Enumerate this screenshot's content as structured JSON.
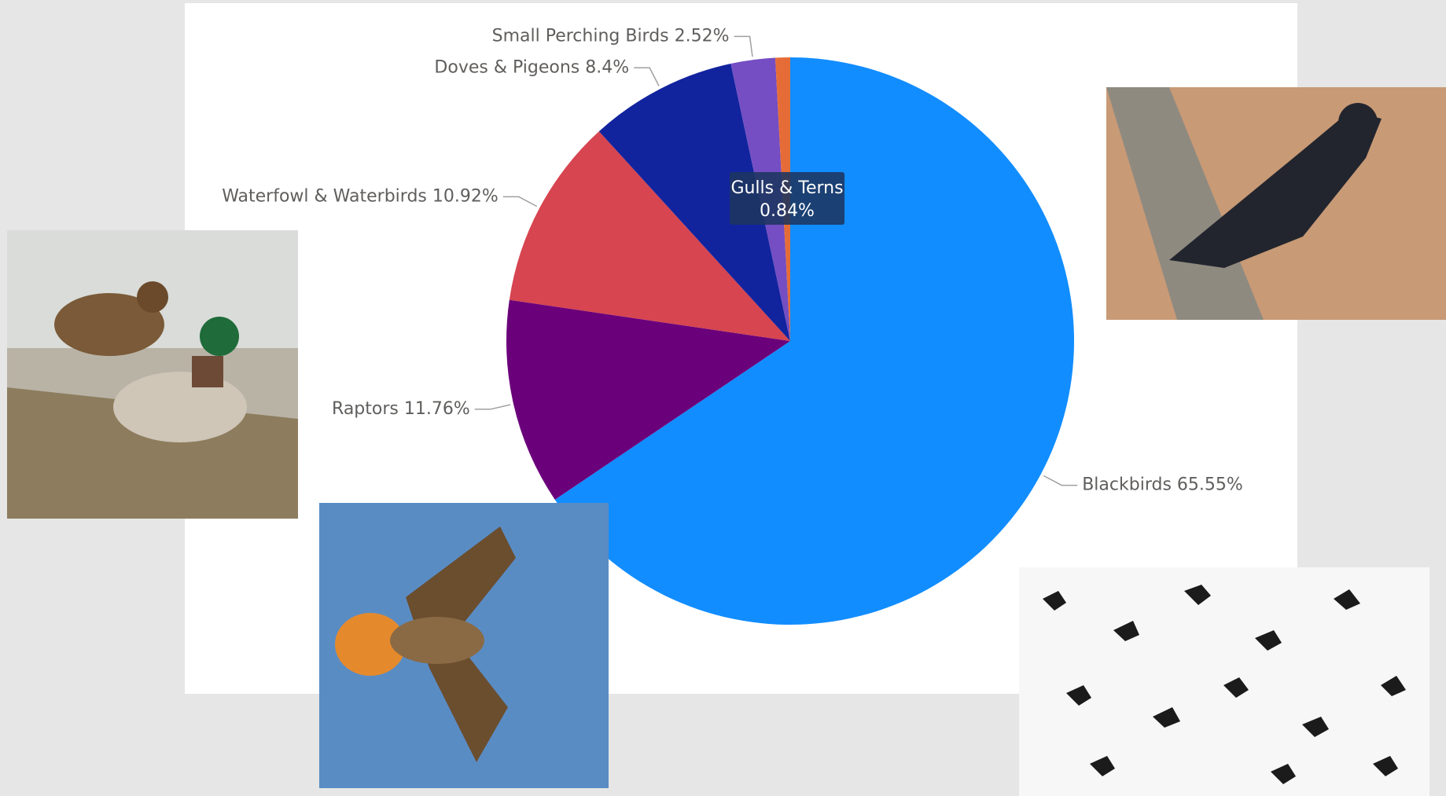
{
  "chart_data": {
    "type": "pie",
    "categories": [
      "Blackbirds",
      "Raptors",
      "Waterfowl & Waterbirds",
      "Doves & Pigeons",
      "Small Perching Birds",
      "Gulls & Terns"
    ],
    "values": [
      65.55,
      11.76,
      10.92,
      8.4,
      2.52,
      0.84
    ],
    "value_labels": [
      "65.55%",
      "11.76%",
      "10.92%",
      "8.4%",
      "2.52%",
      null
    ],
    "colors": [
      "#118dff",
      "#6b007b",
      "#d64550",
      "#12239e",
      "#744ec2",
      "#e66c37"
    ],
    "tooltip": {
      "title": "Gulls & Terns",
      "value": "0.84%"
    }
  }
}
